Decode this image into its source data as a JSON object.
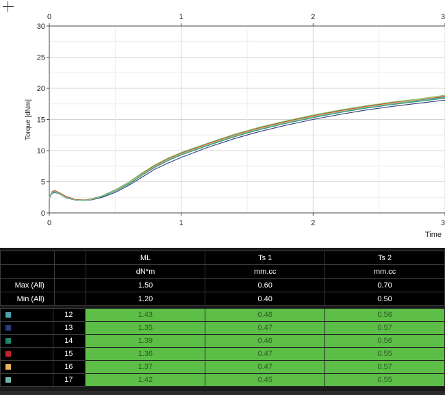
{
  "chart_data": {
    "type": "line",
    "xlabel": "Time",
    "ylabel": "Torque [dNm]",
    "xlim": [
      0,
      3
    ],
    "ylim": [
      0,
      30
    ],
    "x_ticks": [
      "0",
      "1",
      "2",
      "3"
    ],
    "y_ticks": [
      "0",
      "5",
      "10",
      "15",
      "20",
      "25",
      "30"
    ],
    "grid": true,
    "series": [
      {
        "color": "#4aa3ad",
        "x": [
          0,
          0.02,
          0.04,
          0.08,
          0.13,
          0.2,
          0.27,
          0.32,
          0.4,
          0.5,
          0.6,
          0.7,
          0.8,
          0.9,
          1.0,
          1.2,
          1.4,
          1.6,
          1.8,
          2.0,
          2.2,
          2.4,
          2.6,
          2.8,
          3.0
        ],
        "y": [
          2.4,
          3.3,
          3.5,
          3.1,
          2.5,
          2.1,
          2.05,
          2.2,
          2.7,
          3.6,
          4.8,
          6.2,
          7.5,
          8.6,
          9.5,
          11.0,
          12.4,
          13.6,
          14.6,
          15.5,
          16.3,
          17.0,
          17.6,
          18.1,
          18.6
        ]
      },
      {
        "color": "#2e3a78",
        "x": [
          0,
          0.02,
          0.04,
          0.08,
          0.13,
          0.2,
          0.27,
          0.32,
          0.4,
          0.5,
          0.6,
          0.7,
          0.8,
          0.9,
          1.0,
          1.2,
          1.4,
          1.6,
          1.8,
          2.0,
          2.2,
          2.4,
          2.6,
          2.8,
          3.0
        ],
        "y": [
          2.3,
          3.1,
          3.3,
          3.0,
          2.4,
          2.05,
          2.0,
          2.1,
          2.5,
          3.3,
          4.4,
          5.7,
          7.0,
          8.0,
          8.9,
          10.5,
          11.9,
          13.1,
          14.1,
          15.0,
          15.8,
          16.5,
          17.1,
          17.6,
          18.1
        ]
      },
      {
        "color": "#1f8a6e",
        "x": [
          0,
          0.02,
          0.04,
          0.08,
          0.13,
          0.2,
          0.27,
          0.32,
          0.4,
          0.5,
          0.6,
          0.7,
          0.8,
          0.9,
          1.0,
          1.2,
          1.4,
          1.6,
          1.8,
          2.0,
          2.2,
          2.4,
          2.6,
          2.8,
          3.0
        ],
        "y": [
          2.4,
          3.2,
          3.4,
          3.0,
          2.45,
          2.1,
          2.05,
          2.15,
          2.6,
          3.5,
          4.6,
          6.0,
          7.3,
          8.4,
          9.3,
          10.8,
          12.2,
          13.4,
          14.4,
          15.3,
          16.1,
          16.8,
          17.4,
          17.9,
          18.4
        ]
      },
      {
        "color": "#c0242c",
        "x": [
          0,
          0.02,
          0.04,
          0.08,
          0.13,
          0.2,
          0.27,
          0.32,
          0.4,
          0.5,
          0.6,
          0.7,
          0.8,
          0.9,
          1.0,
          1.2,
          1.4,
          1.6,
          1.8,
          2.0,
          2.2,
          2.4,
          2.6,
          2.8,
          3.0
        ],
        "y": [
          2.5,
          3.4,
          3.6,
          3.2,
          2.6,
          2.15,
          2.1,
          2.25,
          2.75,
          3.7,
          4.9,
          6.3,
          7.6,
          8.7,
          9.6,
          11.1,
          12.5,
          13.7,
          14.7,
          15.6,
          16.4,
          17.1,
          17.7,
          18.2,
          18.7
        ]
      },
      {
        "color": "#e8b25a",
        "x": [
          0,
          0.02,
          0.04,
          0.08,
          0.13,
          0.2,
          0.27,
          0.32,
          0.4,
          0.5,
          0.6,
          0.7,
          0.8,
          0.9,
          1.0,
          1.2,
          1.4,
          1.6,
          1.8,
          2.0,
          2.2,
          2.4,
          2.6,
          2.8,
          3.0
        ],
        "y": [
          2.4,
          3.3,
          3.5,
          3.1,
          2.5,
          2.1,
          2.05,
          2.2,
          2.7,
          3.6,
          4.8,
          6.2,
          7.5,
          8.6,
          9.5,
          11.0,
          12.4,
          13.6,
          14.6,
          15.5,
          16.3,
          17.0,
          17.6,
          18.2,
          18.8
        ]
      },
      {
        "color": "#6fb7a8",
        "x": [
          0,
          0.02,
          0.04,
          0.08,
          0.13,
          0.2,
          0.27,
          0.32,
          0.4,
          0.5,
          0.6,
          0.7,
          0.8,
          0.9,
          1.0,
          1.2,
          1.4,
          1.6,
          1.8,
          2.0,
          2.2,
          2.4,
          2.6,
          2.8,
          3.0
        ],
        "y": [
          2.3,
          3.2,
          3.4,
          3.0,
          2.45,
          2.1,
          2.0,
          2.15,
          2.65,
          3.55,
          4.7,
          6.1,
          7.4,
          8.5,
          9.4,
          10.9,
          12.3,
          13.5,
          14.5,
          15.4,
          16.2,
          16.9,
          17.5,
          18.0,
          18.5
        ]
      },
      {
        "color": "#7cc46a",
        "x": [
          0,
          0.02,
          0.04,
          0.08,
          0.13,
          0.2,
          0.27,
          0.32,
          0.4,
          0.5,
          0.6,
          0.7,
          0.8,
          0.9,
          1.0,
          1.2,
          1.4,
          1.6,
          1.8,
          2.0,
          2.2,
          2.4,
          2.6,
          2.8,
          3.0
        ],
        "y": [
          2.5,
          3.3,
          3.5,
          3.1,
          2.5,
          2.1,
          2.05,
          2.2,
          2.75,
          3.7,
          4.9,
          6.4,
          7.7,
          8.8,
          9.7,
          11.2,
          12.6,
          13.8,
          14.8,
          15.7,
          16.5,
          17.2,
          17.8,
          18.3,
          18.9
        ]
      }
    ]
  },
  "table": {
    "columns": [
      {
        "name": "ML",
        "unit": "dN*m"
      },
      {
        "name": "Ts 1",
        "unit": "mm.cc"
      },
      {
        "name": "Ts 2",
        "unit": "mm.cc"
      }
    ],
    "summary": [
      {
        "label": "Max (All)",
        "values": [
          "1.50",
          "0.60",
          "0.70"
        ]
      },
      {
        "label": "Min (All)",
        "values": [
          "1.20",
          "0.40",
          "0.50"
        ]
      }
    ],
    "rows": [
      {
        "id": "12",
        "color": "#4aa3ad",
        "values": [
          "1.43",
          "0.46",
          "0.56"
        ]
      },
      {
        "id": "13",
        "color": "#2e3a78",
        "values": [
          "1.35",
          "0.47",
          "0.57"
        ]
      },
      {
        "id": "14",
        "color": "#1f8a6e",
        "values": [
          "1.39",
          "0.46",
          "0.56"
        ]
      },
      {
        "id": "15",
        "color": "#c0242c",
        "values": [
          "1.36",
          "0.47",
          "0.55"
        ]
      },
      {
        "id": "16",
        "color": "#e8b25a",
        "values": [
          "1.37",
          "0.47",
          "0.57"
        ]
      },
      {
        "id": "17",
        "color": "#6fb7a8",
        "values": [
          "1.42",
          "0.45",
          "0.55"
        ]
      }
    ]
  }
}
